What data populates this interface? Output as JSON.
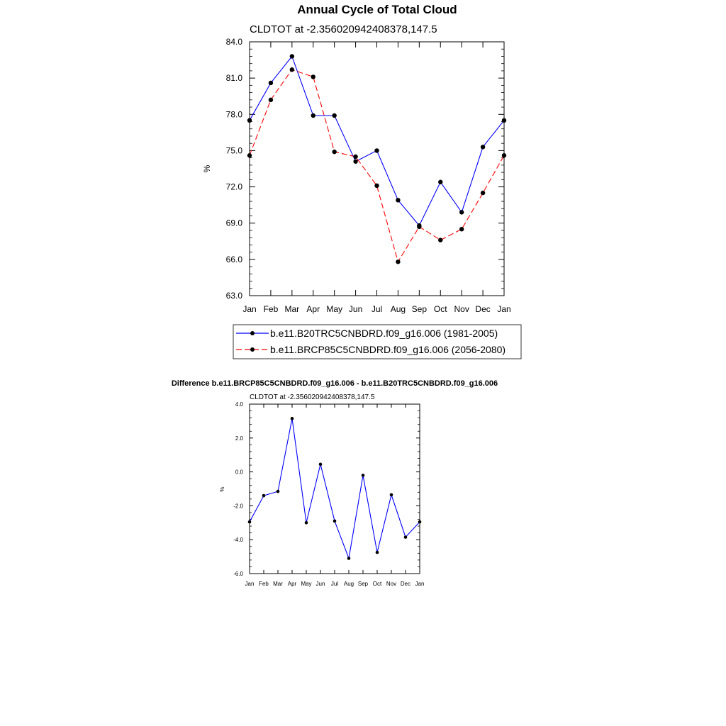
{
  "chart_data": [
    {
      "type": "line",
      "title": "Annual Cycle of Total Cloud",
      "subtitle": "CLDTOT at -2.356020942408378,147.5",
      "xlabel": "",
      "ylabel": "%",
      "categories": [
        "Jan",
        "Feb",
        "Mar",
        "Apr",
        "May",
        "Jun",
        "Jul",
        "Aug",
        "Sep",
        "Oct",
        "Nov",
        "Dec",
        "Jan"
      ],
      "ylim": [
        63.0,
        84.0
      ],
      "yticks": [
        "63.0",
        "66.0",
        "69.0",
        "72.0",
        "75.0",
        "78.0",
        "81.0",
        "84.0"
      ],
      "grid": false,
      "legend_position": "bottom",
      "series": [
        {
          "name": "b.e11.B20TRC5CNBDRD.f09_g16.006 (1981-2005)",
          "color": "#0000ff",
          "dash": "solid",
          "values": [
            77.5,
            80.6,
            82.8,
            77.9,
            77.9,
            74.1,
            75.0,
            70.9,
            68.8,
            72.4,
            69.9,
            75.3,
            77.5
          ]
        },
        {
          "name": "b.e11.BRCP85C5CNBDRD.f09_g16.006 (2056-2080)",
          "color": "#ff0000",
          "dash": "dashed",
          "values": [
            74.6,
            79.2,
            81.7,
            81.1,
            74.9,
            74.5,
            72.1,
            65.8,
            68.7,
            67.6,
            68.5,
            71.5,
            74.6
          ]
        }
      ]
    },
    {
      "type": "line",
      "title": "Difference b.e11.BRCP85C5CNBDRD.f09_g16.006 - b.e11.B20TRC5CNBDRD.f09_g16.006",
      "subtitle": "CLDTOT at -2.356020942408378,147.5",
      "xlabel": "",
      "ylabel": "%",
      "categories": [
        "Jan",
        "Feb",
        "Mar",
        "Apr",
        "May",
        "Jun",
        "Jul",
        "Aug",
        "Sep",
        "Oct",
        "Nov",
        "Dec",
        "Jan"
      ],
      "ylim": [
        -6.0,
        4.0
      ],
      "yticks": [
        "-6.0",
        "-4.0",
        "-2.0",
        "0.0",
        "2.0",
        "4.0"
      ],
      "grid": false,
      "series": [
        {
          "color": "#0000ff",
          "values": [
            -2.95,
            -1.4,
            -1.15,
            3.15,
            -3.0,
            0.45,
            -2.9,
            -5.1,
            -0.2,
            -4.75,
            -1.35,
            -3.85,
            -2.95
          ]
        }
      ]
    }
  ]
}
